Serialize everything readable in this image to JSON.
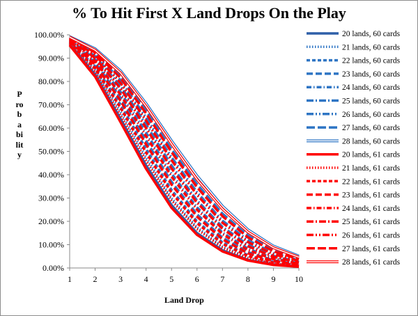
{
  "chart_data": {
    "type": "line",
    "title": "% To Hit First X Land Drops On the Play",
    "xlabel": "Land Drop",
    "ylabel": "Probability",
    "x": [
      1,
      2,
      3,
      4,
      5,
      6,
      7,
      8,
      9,
      10
    ],
    "xlim": [
      1,
      10
    ],
    "ylim": [
      0,
      100
    ],
    "yticks": [
      "0.00%",
      "10.00%",
      "20.00%",
      "30.00%",
      "40.00%",
      "50.00%",
      "60.00%",
      "70.00%",
      "80.00%",
      "90.00%",
      "100.00%"
    ],
    "grid": false,
    "legend": "right",
    "colors": {
      "blue": "#2e75c4",
      "red": "#ff0000"
    },
    "series": [
      {
        "name": "20 lands, 60 cards",
        "color": "#2f5fa8",
        "style": "solid",
        "values": [
          96,
          83,
          64,
          44,
          27,
          15,
          7.6,
          3.5,
          1.5,
          0.6
        ]
      },
      {
        "name": "21 lands, 60 cards",
        "color": "#2e75c4",
        "style": "dot",
        "values": [
          96.5,
          85,
          67,
          47.5,
          30,
          17.5,
          9.2,
          4.4,
          2.0,
          0.8
        ]
      },
      {
        "name": "22 lands, 60 cards",
        "color": "#2e75c4",
        "style": "dash",
        "values": [
          97,
          86.5,
          70,
          51,
          33.5,
          20,
          11,
          5.5,
          2.6,
          1.1
        ]
      },
      {
        "name": "23 lands, 60 cards",
        "color": "#2e75c4",
        "style": "longdash",
        "values": [
          97.5,
          88,
          73,
          54.5,
          37,
          23,
          13,
          6.8,
          3.3,
          1.5
        ]
      },
      {
        "name": "24 lands, 60 cards",
        "color": "#2e75c4",
        "style": "dashdot",
        "values": [
          98,
          89.5,
          75.5,
          58,
          40.5,
          26,
          15.2,
          8.3,
          4.2,
          2.0
        ]
      },
      {
        "name": "25 lands, 60 cards",
        "color": "#2e75c4",
        "style": "longdashdot",
        "values": [
          98.3,
          90.8,
          78,
          61.5,
          44,
          29,
          17.6,
          10,
          5.2,
          2.6
        ]
      },
      {
        "name": "26 lands, 60 cards",
        "color": "#2e75c4",
        "style": "longdashdotdot",
        "values": [
          98.6,
          92,
          80.5,
          64.5,
          47.5,
          32.5,
          20.3,
          11.9,
          6.4,
          3.3
        ]
      },
      {
        "name": "27 lands, 60 cards",
        "color": "#2e75c4",
        "style": "longdash2",
        "values": [
          98.9,
          93,
          82.5,
          67.5,
          51,
          36,
          23.3,
          14,
          7.8,
          4.1
        ]
      },
      {
        "name": "28 lands, 60 cards",
        "color": "#2e75c4",
        "style": "double",
        "values": [
          99.2,
          94,
          84.5,
          70.5,
          54.5,
          39.5,
          26.5,
          16.4,
          9.4,
          5.1
        ]
      },
      {
        "name": "20 lands, 61 cards",
        "color": "#ff0000",
        "style": "solid",
        "values": [
          95.5,
          82,
          62.5,
          42.5,
          25.8,
          14.2,
          7.1,
          3.2,
          1.3,
          0.5
        ]
      },
      {
        "name": "21 lands, 61 cards",
        "color": "#ff0000",
        "style": "dot",
        "values": [
          96,
          84,
          65.5,
          46,
          29,
          16.7,
          8.7,
          4.1,
          1.8,
          0.7
        ]
      },
      {
        "name": "22 lands, 61 cards",
        "color": "#ff0000",
        "style": "dash",
        "values": [
          96.7,
          85.6,
          68.7,
          49.5,
          32.3,
          19.2,
          10.4,
          5.1,
          2.3,
          1.0
        ]
      },
      {
        "name": "23 lands, 61 cards",
        "color": "#ff0000",
        "style": "longdash",
        "values": [
          97.2,
          87.2,
          71.7,
          53,
          35.8,
          22,
          12.3,
          6.3,
          3.0,
          1.3
        ]
      },
      {
        "name": "24 lands, 61 cards",
        "color": "#ff0000",
        "style": "dashdot",
        "values": [
          97.7,
          88.7,
          74.3,
          56.5,
          39.2,
          25,
          14.5,
          7.7,
          3.8,
          1.8
        ]
      },
      {
        "name": "25 lands, 61 cards",
        "color": "#ff0000",
        "style": "longdashdot",
        "values": [
          98.1,
          90,
          77,
          60,
          42.7,
          28,
          16.8,
          9.3,
          4.8,
          2.3
        ]
      },
      {
        "name": "26 lands, 61 cards",
        "color": "#ff0000",
        "style": "longdashdotdot",
        "values": [
          98.4,
          91.3,
          79.3,
          63.2,
          46.2,
          31.3,
          19.4,
          11.1,
          5.9,
          3.0
        ]
      },
      {
        "name": "27 lands, 61 cards",
        "color": "#ff0000",
        "style": "longdash2",
        "values": [
          98.7,
          92.4,
          81.5,
          66.3,
          49.7,
          34.6,
          22.2,
          13.1,
          7.2,
          3.7
        ]
      },
      {
        "name": "28 lands, 61 cards",
        "color": "#ff0000",
        "style": "double",
        "values": [
          99,
          93.4,
          83.6,
          69.3,
          53.2,
          38,
          25.3,
          15.4,
          8.7,
          4.6
        ]
      }
    ]
  }
}
